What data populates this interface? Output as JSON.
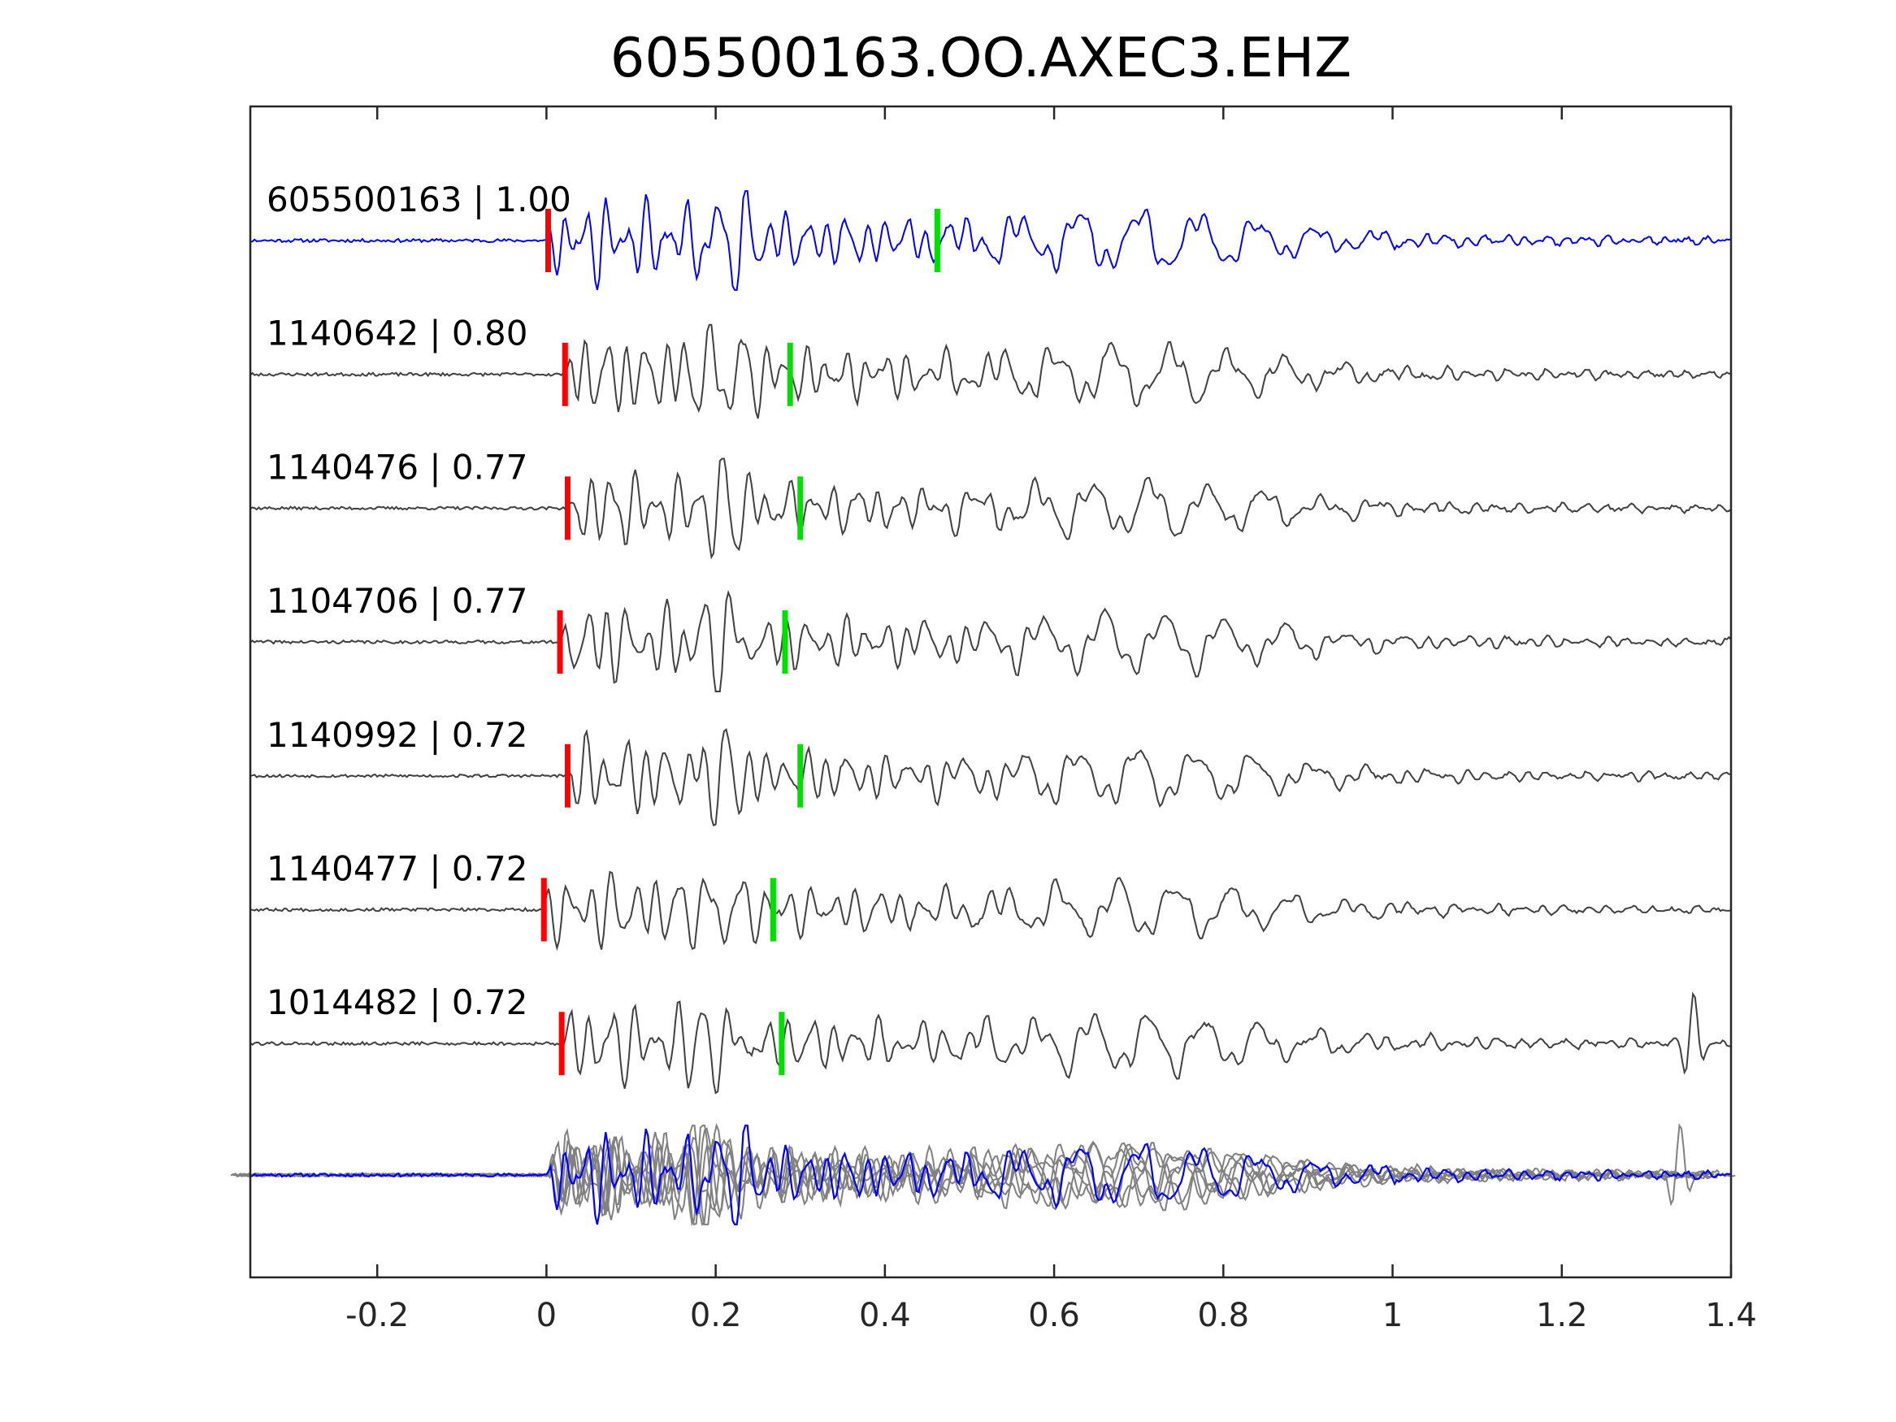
{
  "chart_data": {
    "type": "line",
    "title": "605500163.OO.AXEC3.EHZ",
    "xlabel": "",
    "ylabel": "",
    "xlim": [
      -0.35,
      1.4
    ],
    "x_ticks": [
      "-0.2",
      "0",
      "0.2",
      "0.4",
      "0.6",
      "0.8",
      "1",
      "1.2",
      "1.4"
    ],
    "x_tick_values": [
      -0.2,
      0,
      0.2,
      0.4,
      0.6,
      0.8,
      1,
      1.2,
      1.4
    ],
    "grid": false,
    "colors": {
      "master": "#0000ff",
      "neighbor": "#404040",
      "overlay_neighbor": "#808080",
      "p_pick": "#ff0000",
      "s_pick": "#00e000"
    },
    "traces": [
      {
        "event_id": "605500163",
        "correlation": "1.00",
        "label": "605500163 | 1.00",
        "color": "master",
        "p_pick": 0.002,
        "s_pick": 0.462,
        "seed": 11,
        "amplitude": 1.0,
        "spike": false
      },
      {
        "event_id": "1140642",
        "correlation": "0.80",
        "label": "1140642 | 0.80",
        "color": "neighbor",
        "p_pick": 0.022,
        "s_pick": 0.288,
        "seed": 23,
        "amplitude": 0.95,
        "spike": false
      },
      {
        "event_id": "1140476",
        "correlation": "0.77",
        "label": "1140476 | 0.77",
        "color": "neighbor",
        "p_pick": 0.025,
        "s_pick": 0.3,
        "seed": 37,
        "amplitude": 0.9,
        "spike": false
      },
      {
        "event_id": "1104706",
        "correlation": "0.77",
        "label": "1104706 | 0.77",
        "color": "neighbor",
        "p_pick": 0.016,
        "s_pick": 0.282,
        "seed": 41,
        "amplitude": 0.95,
        "spike": false
      },
      {
        "event_id": "1140992",
        "correlation": "0.72",
        "label": "1140992 | 0.72",
        "color": "neighbor",
        "p_pick": 0.025,
        "s_pick": 0.3,
        "seed": 53,
        "amplitude": 0.9,
        "spike": false
      },
      {
        "event_id": "1140477",
        "correlation": "0.72",
        "label": "1140477 | 0.72",
        "color": "neighbor",
        "p_pick": -0.003,
        "s_pick": 0.268,
        "seed": 67,
        "amplitude": 0.9,
        "spike": false
      },
      {
        "event_id": "1014482",
        "correlation": "0.72",
        "label": "1014482 | 0.72",
        "color": "neighbor",
        "p_pick": 0.018,
        "s_pick": 0.278,
        "seed": 79,
        "amplitude": 0.95,
        "spike": true
      }
    ],
    "overlay": {
      "description_rows": 1,
      "master_on_top": true
    }
  }
}
